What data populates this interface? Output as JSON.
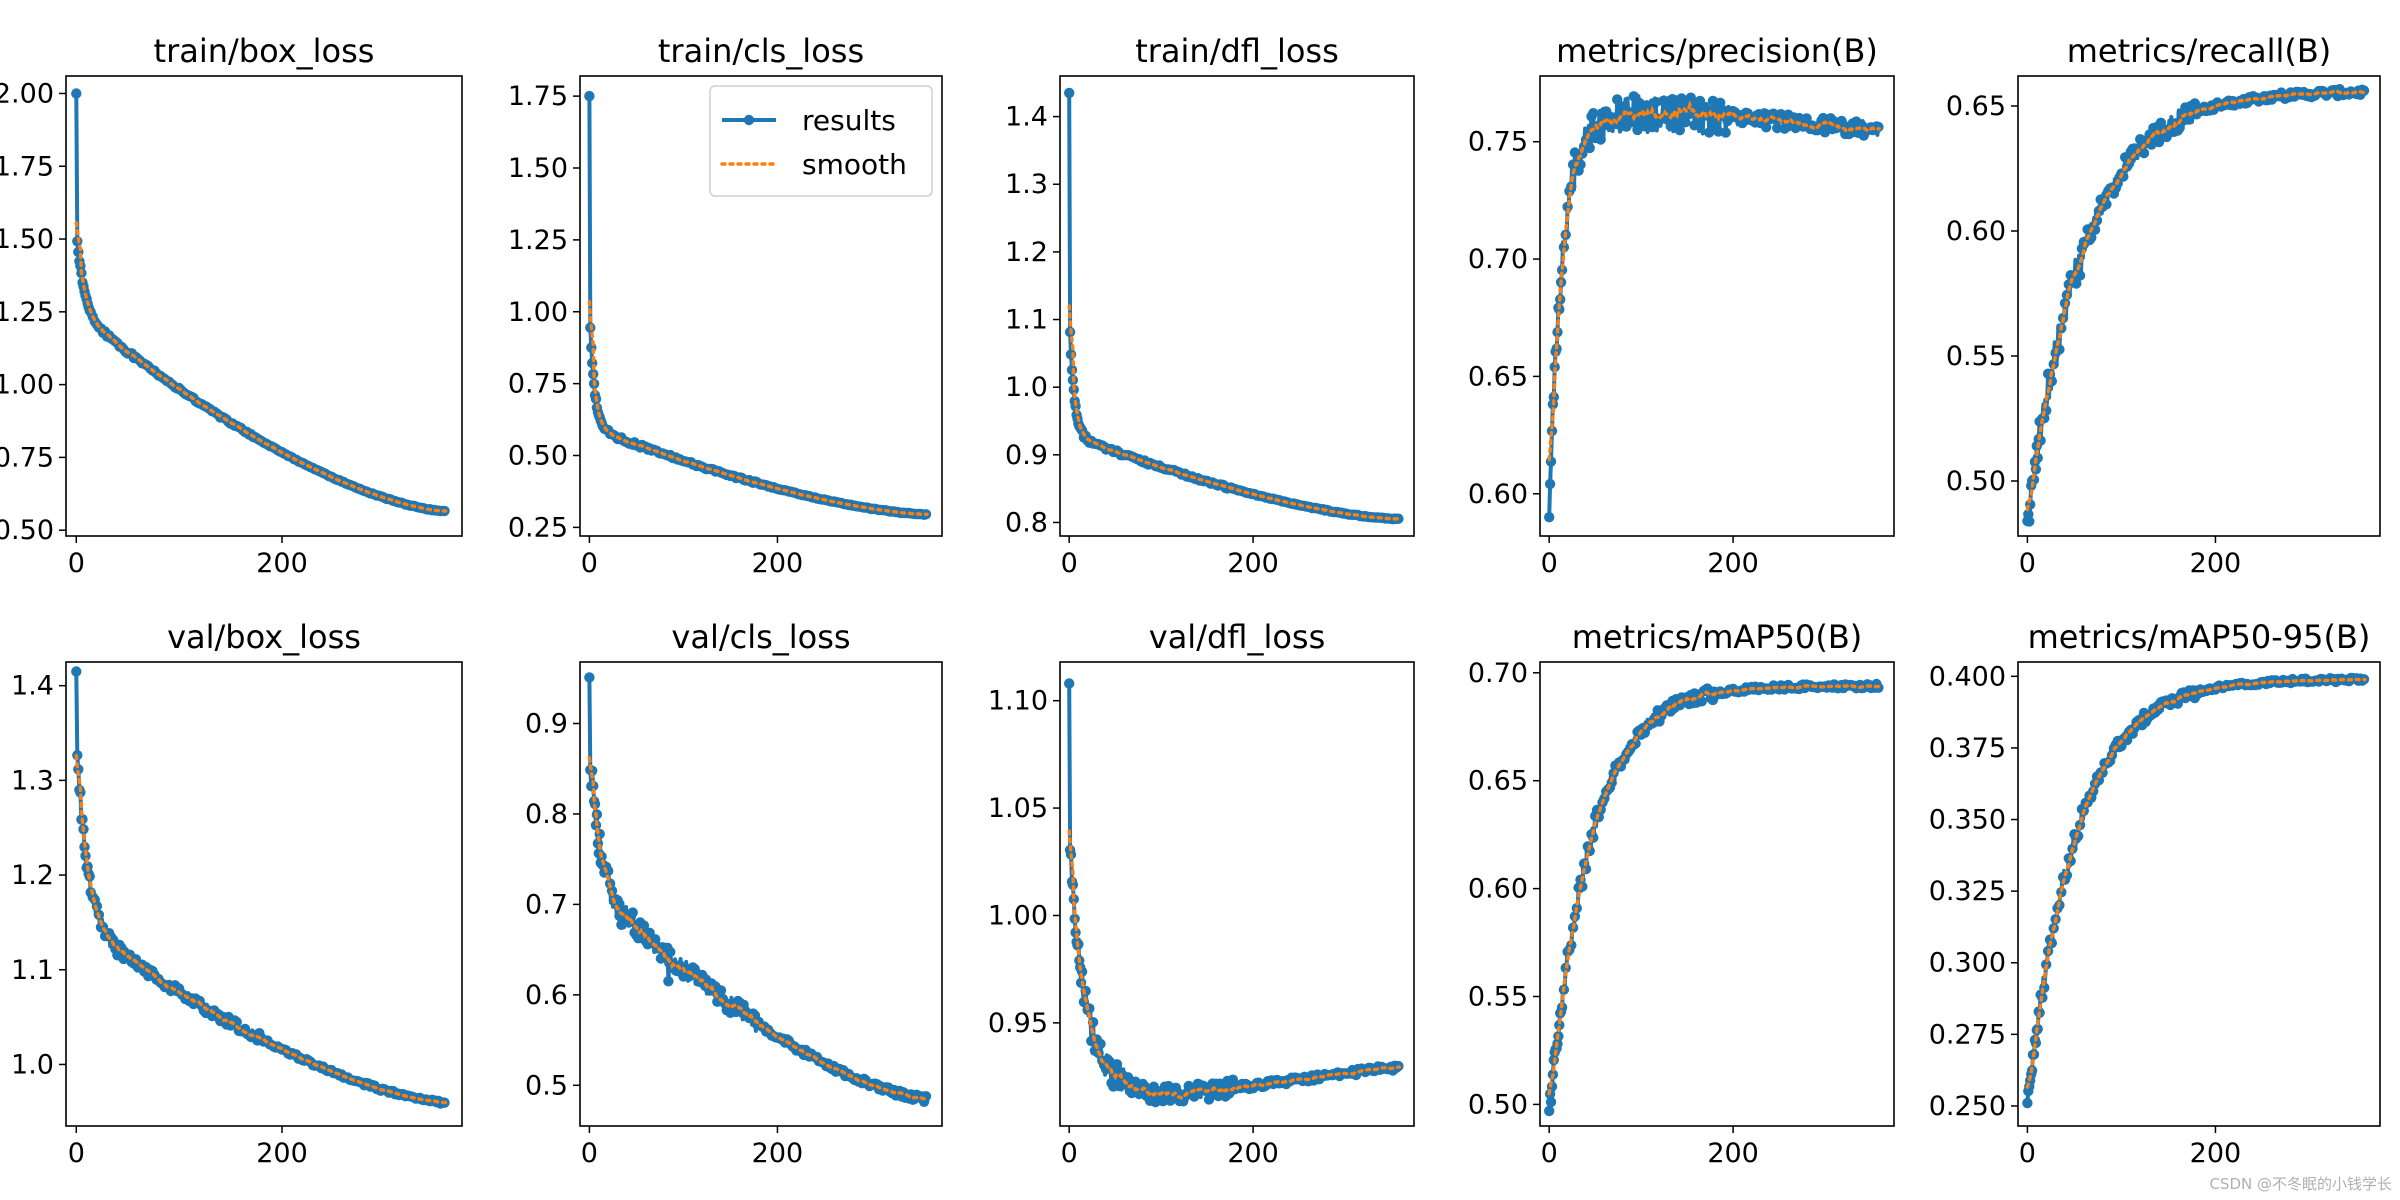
{
  "watermark": "CSDN @不冬眠的小钱学长",
  "legend": {
    "results_label": "results",
    "smooth_label": "smooth"
  },
  "colors": {
    "results": "#1f77b4",
    "smooth": "#ff7f0e",
    "axes": "#000000"
  },
  "chart_data": [
    {
      "type": "line",
      "title": "train/box_loss",
      "epochs": 360,
      "xlim": [
        -10,
        375
      ],
      "ylim": [
        0.48,
        2.06
      ],
      "xticks": [
        0,
        200
      ],
      "yticks": [
        0.5,
        0.75,
        1.0,
        1.25,
        1.5,
        1.75,
        2.0
      ],
      "ydecimals": 2,
      "curve": "decay",
      "start": 2.0,
      "plateau": 1.5,
      "knee": 1.25,
      "end": 0.565,
      "tau": 20,
      "noise": 0.004
    },
    {
      "type": "line",
      "title": "train/cls_loss",
      "epochs": 360,
      "xlim": [
        -10,
        375
      ],
      "ylim": [
        0.22,
        1.82
      ],
      "xticks": [
        0,
        200
      ],
      "yticks": [
        0.25,
        0.5,
        0.75,
        1.0,
        1.25,
        1.5,
        1.75
      ],
      "ydecimals": 2,
      "curve": "decay",
      "start": 1.75,
      "plateau": 0.94,
      "knee": 0.6,
      "end": 0.295,
      "tau": 14,
      "noise": 0.004,
      "legend": "top-right"
    },
    {
      "type": "line",
      "title": "train/dfl_loss",
      "epochs": 360,
      "xlim": [
        -10,
        375
      ],
      "ylim": [
        0.78,
        1.46
      ],
      "xticks": [
        0,
        200
      ],
      "yticks": [
        0.8,
        0.9,
        1.0,
        1.1,
        1.2,
        1.3,
        1.4
      ],
      "ydecimals": 1,
      "curve": "decay",
      "start": 1.435,
      "plateau": 1.08,
      "knee": 0.93,
      "end": 0.805,
      "tau": 14,
      "noise": 0.002
    },
    {
      "type": "line",
      "title": "metrics/precision(B)",
      "epochs": 360,
      "xlim": [
        -10,
        375
      ],
      "ylim": [
        0.582,
        0.778
      ],
      "xticks": [
        0,
        200
      ],
      "yticks": [
        0.6,
        0.65,
        0.7,
        0.75
      ],
      "ydecimals": 2,
      "curve": "hump",
      "start": 0.59,
      "end": 0.755,
      "peak": 0.762,
      "peak_epoch": 150,
      "tau": 14,
      "noise": 0.008
    },
    {
      "type": "line",
      "title": "metrics/recall(B)",
      "epochs": 360,
      "xlim": [
        -10,
        375
      ],
      "ylim": [
        0.478,
        0.662
      ],
      "xticks": [
        0,
        200
      ],
      "yticks": [
        0.5,
        0.55,
        0.6,
        0.65
      ],
      "ydecimals": 2,
      "curve": "rise",
      "start": 0.484,
      "end": 0.656,
      "tau": 60,
      "noise": 0.004
    },
    {
      "type": "line",
      "title": "val/box_loss",
      "epochs": 360,
      "xlim": [
        -10,
        375
      ],
      "ylim": [
        0.935,
        1.425
      ],
      "xticks": [
        0,
        200
      ],
      "yticks": [
        1.0,
        1.1,
        1.2,
        1.3,
        1.4
      ],
      "ydecimals": 1,
      "curve": "decay",
      "start": 1.415,
      "plateau": 1.33,
      "knee": 1.15,
      "end": 0.96,
      "tau": 28,
      "noise": 0.005
    },
    {
      "type": "line",
      "title": "val/cls_loss",
      "epochs": 360,
      "xlim": [
        -10,
        375
      ],
      "ylim": [
        0.455,
        0.968
      ],
      "xticks": [
        0,
        200
      ],
      "yticks": [
        0.5,
        0.6,
        0.7,
        0.8,
        0.9
      ],
      "ydecimals": 1,
      "curve": "decay",
      "start": 0.951,
      "plateau": 0.86,
      "knee": 0.72,
      "end": 0.485,
      "tau": 30,
      "noise": 0.01,
      "spike_epoch": 84,
      "spike_value": 0.615
    },
    {
      "type": "line",
      "title": "val/dfl_loss",
      "epochs": 360,
      "xlim": [
        -10,
        375
      ],
      "ylim": [
        0.902,
        1.118
      ],
      "xticks": [
        0,
        200
      ],
      "yticks": [
        0.95,
        1.0,
        1.05,
        1.1
      ],
      "ydecimals": 2,
      "curve": "dip",
      "start": 1.108,
      "plateau": 1.04,
      "knee": 1.0,
      "min": 0.915,
      "min_epoch": 95,
      "end": 0.929,
      "tau": 20,
      "noise": 0.004
    },
    {
      "type": "line",
      "title": "metrics/mAP50(B)",
      "epochs": 360,
      "xlim": [
        -10,
        375
      ],
      "ylim": [
        0.49,
        0.705
      ],
      "xticks": [
        0,
        200
      ],
      "yticks": [
        0.5,
        0.55,
        0.6,
        0.65,
        0.7
      ],
      "ydecimals": 2,
      "curve": "rise",
      "start": 0.497,
      "end": 0.694,
      "tau": 45,
      "noise": 0.003
    },
    {
      "type": "line",
      "title": "metrics/mAP50-95(B)",
      "epochs": 360,
      "xlim": [
        -10,
        375
      ],
      "ylim": [
        0.243,
        0.405
      ],
      "xticks": [
        0,
        200
      ],
      "yticks": [
        0.25,
        0.275,
        0.3,
        0.325,
        0.35,
        0.375,
        0.4
      ],
      "ydecimals": 3,
      "curve": "rise",
      "start": 0.251,
      "end": 0.399,
      "tau": 52,
      "noise": 0.002
    }
  ]
}
